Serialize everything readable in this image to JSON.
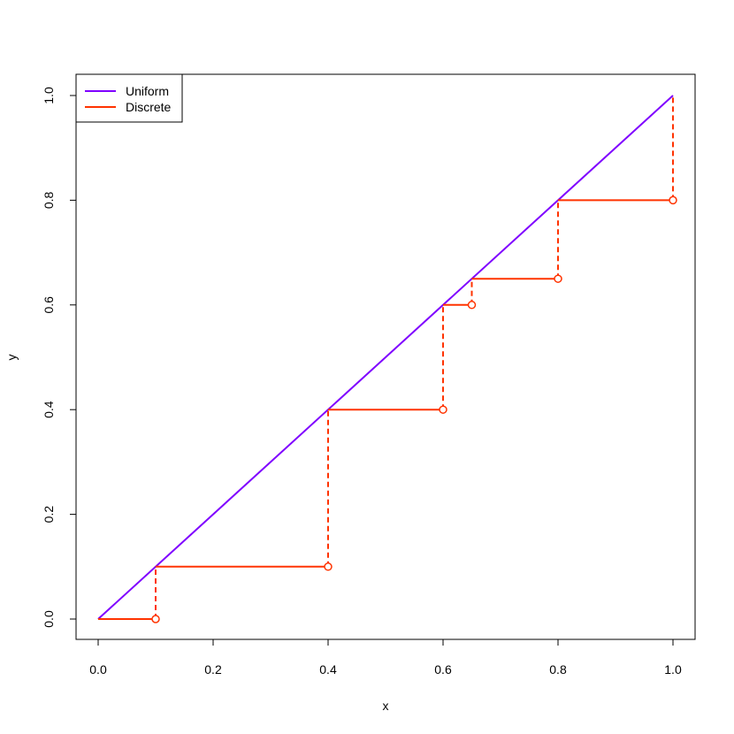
{
  "chart_data": {
    "type": "line",
    "title": "",
    "xlabel": "x",
    "ylabel": "y",
    "xlim": [
      0.0,
      1.0
    ],
    "ylim": [
      0.0,
      1.0
    ],
    "grid": false,
    "legend_position": "top-left",
    "x_ticks": [
      "0.0",
      "0.2",
      "0.4",
      "0.6",
      "0.8",
      "1.0"
    ],
    "y_ticks": [
      "0.0",
      "0.2",
      "0.4",
      "0.6",
      "0.8",
      "1.0"
    ],
    "series": [
      {
        "name": "Uniform",
        "color": "#7F00FF",
        "style": "line",
        "x": [
          0.0,
          1.0
        ],
        "y": [
          0.0,
          1.0
        ]
      },
      {
        "name": "Discrete",
        "color": "#FF3300",
        "style": "step",
        "x": [
          0.0,
          0.1,
          0.4,
          0.6,
          0.65,
          0.8,
          1.0
        ],
        "y": [
          0.0,
          0.1,
          0.4,
          0.6,
          0.65,
          0.8,
          1.0
        ]
      }
    ]
  }
}
